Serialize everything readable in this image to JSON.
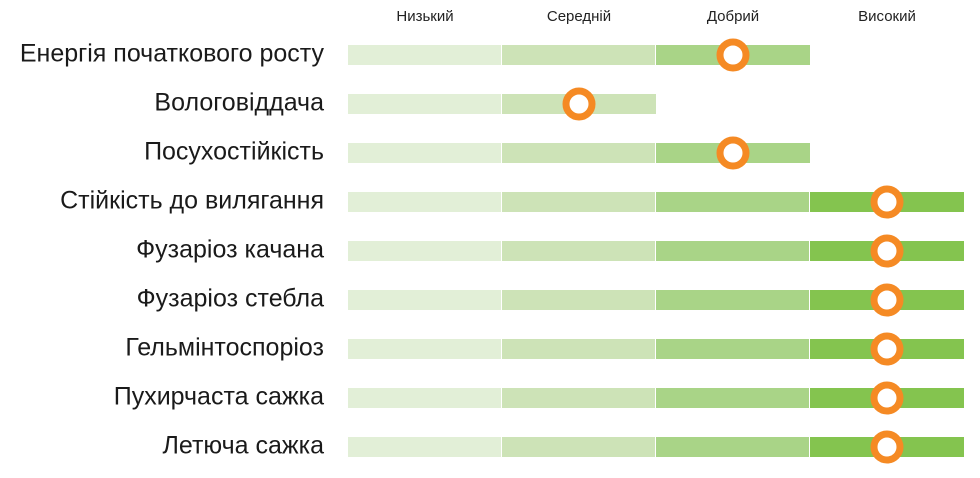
{
  "chart_data": {
    "type": "bar",
    "title": "",
    "xlabel": "",
    "ylabel": "",
    "level_labels": [
      "Низький",
      "Середній",
      "Добрий",
      "Високий"
    ],
    "level_colors": [
      "#e2efd7",
      "#cde3b7",
      "#a9d487",
      "#84c44f"
    ],
    "marker_color": "#f58a24",
    "xlim": [
      0,
      4
    ],
    "categories": [
      "Енергія початкового росту",
      "Вологовіддача",
      "Посухостійкість",
      "Стійкість до вилягання",
      "Фузаріоз качана",
      "Фузаріоз стебла",
      "Гельмінтоспоріоз",
      "Пухирчаста сажка",
      "Летюча сажка"
    ],
    "values": [
      2.5,
      1.5,
      2.5,
      3.5,
      3.5,
      3.5,
      3.5,
      3.5,
      3.5
    ],
    "bar_levels": [
      3,
      2,
      3,
      4,
      4,
      4,
      4,
      4,
      4
    ]
  }
}
